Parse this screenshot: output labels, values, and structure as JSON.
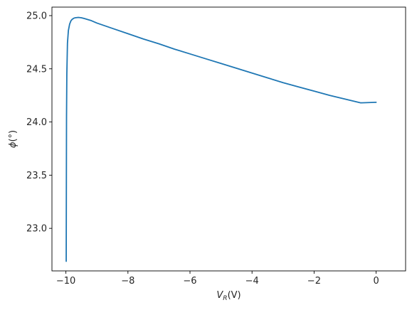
{
  "chart_data": {
    "type": "line",
    "xlabel": {
      "symbol": "V",
      "subscript": "R",
      "unit": "(V)"
    },
    "ylabel": {
      "symbol": "ϕ",
      "unit": "(°)"
    },
    "xlim": [
      -10.45,
      0.95
    ],
    "ylim": [
      22.6,
      25.08
    ],
    "xticks": [
      -10,
      -8,
      -6,
      -4,
      -2,
      0
    ],
    "xtick_labels": [
      "−10",
      "−8",
      "−6",
      "−4",
      "−2",
      "0"
    ],
    "yticks": [
      23.0,
      23.5,
      24.0,
      24.5,
      25.0
    ],
    "ytick_labels": [
      "23.0",
      "23.5",
      "24.0",
      "24.5",
      "25.0"
    ],
    "grid": false,
    "series": [
      {
        "color": "#1f77b4",
        "x": [
          -9.99,
          -9.985,
          -9.98,
          -9.97,
          -9.95,
          -9.92,
          -9.88,
          -9.84,
          -9.8,
          -9.75,
          -9.7,
          -9.6,
          -9.5,
          -9.4,
          -9.2,
          -9.0,
          -8.5,
          -8.0,
          -7.5,
          -7.0,
          -6.5,
          -6.0,
          -5.5,
          -5.0,
          -4.5,
          -4.0,
          -3.5,
          -3.0,
          -2.5,
          -2.0,
          -1.5,
          -1.0,
          -0.5,
          0.0
        ],
        "y": [
          22.69,
          23.4,
          24.05,
          24.45,
          24.74,
          24.86,
          24.92,
          24.95,
          24.965,
          24.975,
          24.98,
          24.983,
          24.98,
          24.972,
          24.955,
          24.93,
          24.88,
          24.83,
          24.78,
          24.735,
          24.685,
          24.64,
          24.595,
          24.55,
          24.505,
          24.46,
          24.415,
          24.37,
          24.33,
          24.29,
          24.25,
          24.215,
          24.18,
          24.185
        ]
      }
    ]
  }
}
